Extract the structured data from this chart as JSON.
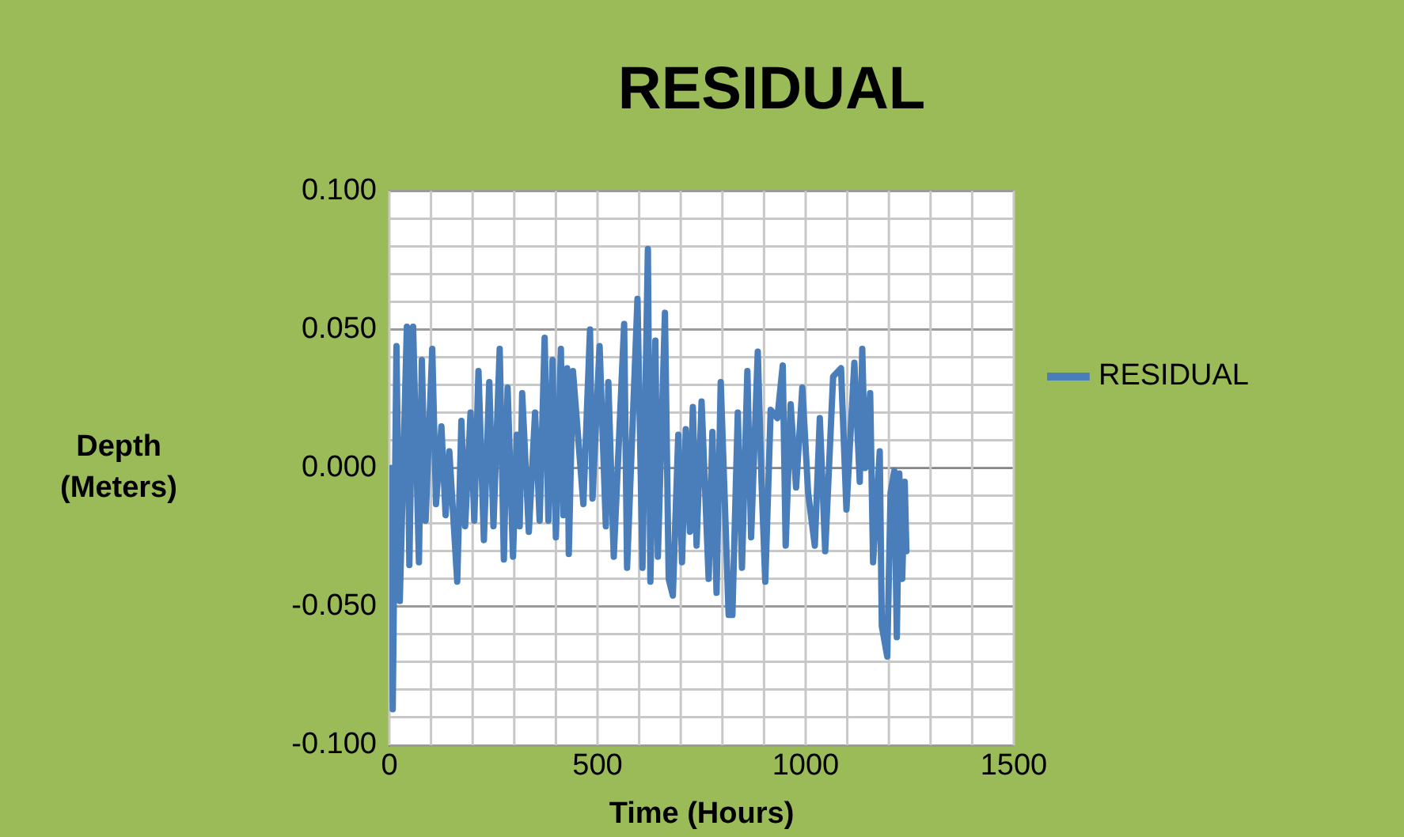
{
  "chart_data": {
    "type": "line",
    "title": "RESIDUAL",
    "xlabel": "Time (Hours)",
    "ylabel": "Depth (Meters)",
    "xlim": [
      0,
      1500
    ],
    "ylim": [
      -0.1,
      0.1
    ],
    "xticks": [
      0,
      {
        "value": 100,
        "label": null
      },
      {
        "value": 200,
        "label": null
      },
      {
        "value": 300,
        "label": null
      },
      {
        "value": 400,
        "label": null
      },
      500,
      {
        "value": 600,
        "label": null
      },
      {
        "value": 700,
        "label": null
      },
      {
        "value": 800,
        "label": null
      },
      {
        "value": 900,
        "label": null
      },
      1000,
      {
        "value": 1100,
        "label": null
      },
      {
        "value": 1200,
        "label": null
      },
      {
        "value": 1300,
        "label": null
      },
      {
        "value": 1400,
        "label": null
      },
      1500
    ],
    "yticks": [
      {
        "value": -0.1,
        "label": "-0.100"
      },
      {
        "value": -0.09,
        "label": null
      },
      {
        "value": -0.08,
        "label": null
      },
      {
        "value": -0.07,
        "label": null
      },
      {
        "value": -0.06,
        "label": null
      },
      {
        "value": -0.05,
        "label": "-0.050"
      },
      {
        "value": -0.04,
        "label": null
      },
      {
        "value": -0.03,
        "label": null
      },
      {
        "value": -0.02,
        "label": null
      },
      {
        "value": -0.01,
        "label": null
      },
      {
        "value": 0,
        "label": "0.000"
      },
      {
        "value": 0.01,
        "label": null
      },
      {
        "value": 0.02,
        "label": null
      },
      {
        "value": 0.03,
        "label": null
      },
      {
        "value": 0.04,
        "label": null
      },
      {
        "value": 0.05,
        "label": "0.050"
      },
      {
        "value": 0.06,
        "label": null
      },
      {
        "value": 0.07,
        "label": null
      },
      {
        "value": 0.08,
        "label": null
      },
      {
        "value": 0.09,
        "label": null
      },
      {
        "value": 0.1,
        "label": "0.100"
      }
    ],
    "grid": true,
    "legend": "right",
    "marker": "none",
    "line_style": "solid",
    "series": [
      {
        "name": "RESIDUAL",
        "color": "#4a7ebb",
        "x": [
          4,
          8,
          17,
          25,
          42,
          48,
          57,
          71,
          78,
          87,
          103,
          112,
          125,
          135,
          144,
          163,
          173,
          182,
          195,
          204,
          214,
          227,
          240,
          250,
          265,
          275,
          284,
          297,
          306,
          313,
          319,
          335,
          350,
          361,
          373,
          382,
          392,
          400,
          412,
          418,
          427,
          431,
          441,
          466,
          482,
          488,
          505,
          520,
          526,
          539,
          564,
          571,
          596,
          608,
          621,
          627,
          639,
          645,
          662,
          671,
          681,
          694,
          703,
          712,
          722,
          729,
          738,
          750,
          767,
          776,
          786,
          796,
          815,
          824,
          837,
          847,
          860,
          869,
          885,
          894,
          903,
          916,
          932,
          945,
          952,
          964,
          977,
          992,
          1006,
          1022,
          1034,
          1047,
          1066,
          1085,
          1098,
          1117,
          1130,
          1136,
          1143,
          1155,
          1162,
          1178,
          1183,
          1196,
          1204,
          1213,
          1219,
          1225,
          1232,
          1238,
          1242
        ],
        "values": [
          0.0,
          -0.087,
          0.044,
          -0.048,
          0.051,
          -0.035,
          0.051,
          -0.034,
          0.039,
          -0.019,
          0.043,
          -0.013,
          0.015,
          -0.017,
          0.006,
          -0.041,
          0.017,
          -0.021,
          0.02,
          -0.019,
          0.035,
          -0.026,
          0.031,
          -0.021,
          0.043,
          -0.033,
          0.029,
          -0.032,
          0.012,
          -0.021,
          0.027,
          -0.023,
          0.02,
          -0.019,
          0.047,
          -0.019,
          0.039,
          -0.025,
          0.043,
          -0.017,
          0.036,
          -0.031,
          0.035,
          -0.013,
          0.05,
          -0.011,
          0.044,
          -0.021,
          0.031,
          -0.032,
          0.052,
          -0.036,
          0.061,
          -0.036,
          0.079,
          -0.041,
          0.046,
          -0.032,
          0.056,
          -0.04,
          -0.046,
          0.012,
          -0.034,
          0.014,
          -0.023,
          0.022,
          -0.028,
          0.024,
          -0.04,
          0.013,
          -0.045,
          0.031,
          -0.053,
          -0.053,
          0.02,
          -0.036,
          0.035,
          -0.025,
          0.042,
          -0.005,
          -0.041,
          0.021,
          0.018,
          0.037,
          -0.028,
          0.023,
          -0.007,
          0.029,
          -0.009,
          -0.028,
          0.018,
          -0.03,
          0.033,
          0.036,
          -0.015,
          0.038,
          -0.005,
          0.043,
          0.0,
          0.027,
          -0.034,
          0.006,
          -0.057,
          -0.068,
          -0.009,
          -0.001,
          -0.061,
          -0.002,
          -0.04,
          -0.005,
          -0.03
        ]
      }
    ]
  }
}
